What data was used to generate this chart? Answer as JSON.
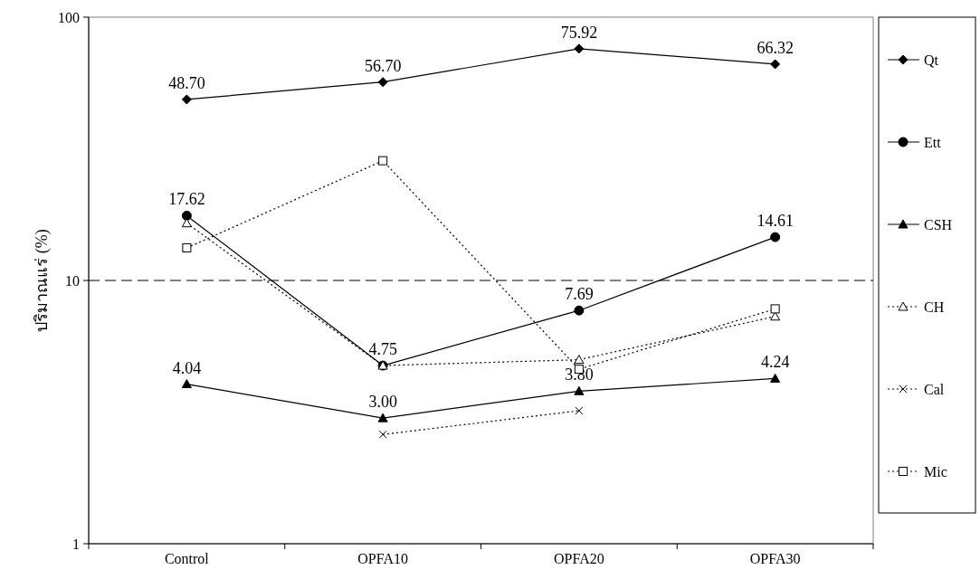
{
  "chart_data": {
    "type": "line",
    "ylabel": "ปริมาณแร่ (%)",
    "categories": [
      "Control",
      "OPFA10",
      "OPFA20",
      "OPFA30"
    ],
    "log": true,
    "ylim": [
      1,
      100
    ],
    "yticks": [
      1,
      10,
      100
    ],
    "grid": false,
    "legend": "right",
    "ref_lines": [
      {
        "axis": "y",
        "value": 10,
        "line_style": "dashed",
        "color": "#000000"
      }
    ],
    "series": [
      {
        "name": "Qt",
        "color": "#000000",
        "marker": "diamond",
        "line_style": "solid",
        "values": [
          48.7,
          56.7,
          75.92,
          66.32
        ],
        "value_labels": [
          "48.70",
          "56.70",
          "75.92",
          "66.32"
        ]
      },
      {
        "name": "Ett",
        "color": "#000000",
        "marker": "circle",
        "line_style": "solid",
        "values": [
          17.62,
          4.75,
          7.69,
          14.61
        ],
        "value_labels": [
          "17.62",
          "4.75",
          "7.69",
          "14.61"
        ]
      },
      {
        "name": "CSH",
        "color": "#000000",
        "marker": "triangle",
        "line_style": "solid",
        "values": [
          4.04,
          3.0,
          3.8,
          4.24
        ],
        "value_labels": [
          "4.04",
          "3.00",
          "3.80",
          "4.24"
        ]
      },
      {
        "name": "CH",
        "color": "#000000",
        "marker": "triangle",
        "line_style": "dotted",
        "values": [
          16.5,
          4.75,
          5.0,
          7.3
        ]
      },
      {
        "name": "Cal",
        "color": "#000000",
        "marker": "cross",
        "line_style": "dotted",
        "values": [
          null,
          2.6,
          3.2,
          null
        ]
      },
      {
        "name": "Mic",
        "color": "#000000",
        "marker": "square",
        "line_style": "dotted",
        "values": [
          13.3,
          28.5,
          4.6,
          7.8
        ]
      }
    ]
  }
}
